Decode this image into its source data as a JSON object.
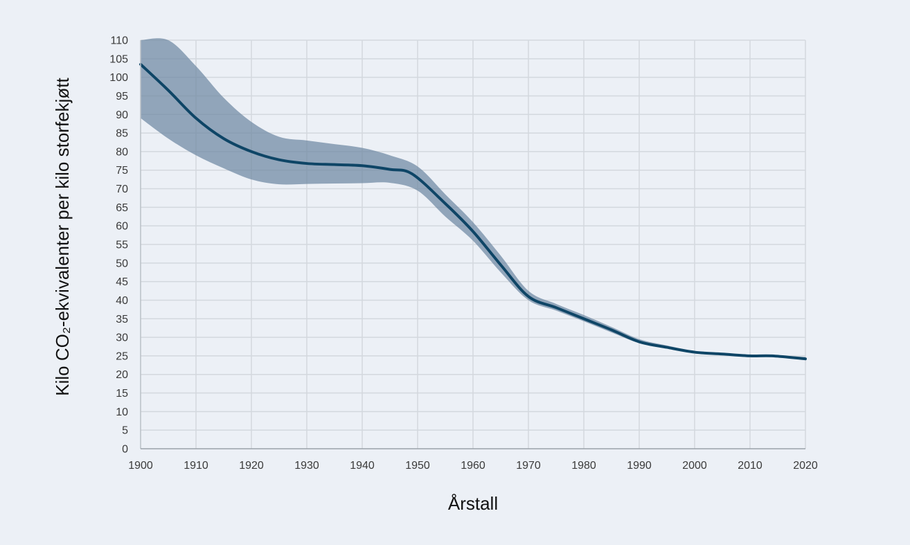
{
  "chart_data": {
    "type": "line",
    "title": "",
    "xlabel": "Årstall",
    "ylabel": "Kilo CO₂-ekvivalenter per kilo storfekjøtt",
    "xlim": [
      1900,
      2020
    ],
    "ylim": [
      0,
      110
    ],
    "x_ticks": [
      1900,
      1910,
      1920,
      1930,
      1940,
      1950,
      1960,
      1970,
      1980,
      1990,
      2000,
      2010,
      2020
    ],
    "y_ticks": [
      0,
      5,
      10,
      15,
      20,
      25,
      30,
      35,
      40,
      45,
      50,
      55,
      60,
      65,
      70,
      75,
      80,
      85,
      90,
      95,
      100,
      105,
      110
    ],
    "grid": true,
    "legend": "none",
    "series": [
      {
        "kind": "line",
        "color": "#0e4566",
        "x": [
          1900,
          1905,
          1910,
          1915,
          1920,
          1925,
          1930,
          1935,
          1940,
          1945,
          1949,
          1955,
          1960,
          1965,
          1970,
          1975,
          1980,
          1985,
          1990,
          1995,
          2000,
          2005,
          2010,
          2014,
          2020
        ],
        "y": [
          103.5,
          96.5,
          89,
          83.5,
          80,
          77.8,
          76.8,
          76.5,
          76.2,
          75.2,
          74,
          66,
          58.5,
          49.5,
          41,
          38,
          35,
          32,
          28.8,
          27.3,
          26,
          25.5,
          25,
          25,
          24.2
        ]
      },
      {
        "kind": "band",
        "color": "#6d88a2",
        "x": [
          1900,
          1905,
          1910,
          1915,
          1920,
          1925,
          1930,
          1935,
          1940,
          1945,
          1950,
          1955,
          1960,
          1965,
          1970,
          1975,
          1980,
          1985,
          1990,
          1995,
          2000,
          2005,
          2010,
          2014,
          2020
        ],
        "upper": [
          110,
          110,
          103,
          94.5,
          88,
          84,
          83,
          82,
          81,
          79,
          76,
          68.5,
          61,
          52,
          42.5,
          39,
          36,
          32.8,
          29.5,
          27.8,
          26.3,
          25.8,
          25.3,
          25.2,
          24.7
        ],
        "lower": [
          89,
          83.5,
          79,
          75.5,
          72.5,
          71.2,
          71.3,
          71.4,
          71.5,
          71.6,
          69.5,
          62.5,
          56,
          47.5,
          40,
          37.2,
          34.3,
          31.3,
          28.4,
          27,
          25.8,
          25.3,
          24.8,
          24.8,
          24
        ]
      }
    ]
  }
}
